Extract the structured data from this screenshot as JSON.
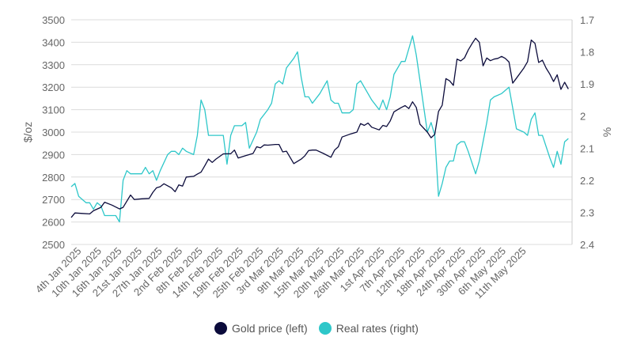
{
  "chart_data": {
    "type": "line",
    "title": "",
    "xlabel": "",
    "ylabel_left": "$/oz",
    "ylabel_right": "%",
    "ylim_left": [
      2500,
      3500
    ],
    "yticks_left": [
      "2500",
      "2600",
      "2700",
      "2800",
      "2900",
      "3000",
      "3100",
      "3200",
      "3300",
      "3400",
      "3500"
    ],
    "ylim_right": [
      2.4,
      1.7
    ],
    "right_axis_inverted": true,
    "yticks_right": [
      "1.7",
      "1.8",
      "1.9",
      "2",
      "2.1",
      "2.2",
      "2.3",
      "2.4"
    ],
    "x_tick_labels": [
      "4th Jan 2025",
      "10th Jan 2025",
      "16th Jan 2025",
      "21st Jan 2025",
      "27th Jan 2025",
      "2nd Feb 2025",
      "8th Feb 2025",
      "14th Feb 2025",
      "19th Feb 2025",
      "25th Feb 2025",
      "3rd Mar 2025",
      "9th Mar 2025",
      "15th Mar 2025",
      "20th Mar 2025",
      "26th Mar 2025",
      "1st Apr 2025",
      "7th Apr 2025",
      "12th Apr 2025",
      "18th Apr 2025",
      "24th Apr 2025",
      "30th Apr 2025",
      "6th May 2025",
      "11th May 2025"
    ],
    "grid": true,
    "legend_position": "bottom-center",
    "series": [
      {
        "name": "Gold price (left)",
        "axis": "left",
        "color": "#0b0b3b",
        "points": [
          [
            "2025-01-02",
            2620
          ],
          [
            "2025-01-03",
            2640
          ],
          [
            "2025-01-05",
            2638
          ],
          [
            "2025-01-07",
            2636
          ],
          [
            "2025-01-08",
            2650
          ],
          [
            "2025-01-10",
            2665
          ],
          [
            "2025-01-11",
            2688
          ],
          [
            "2025-01-13",
            2675
          ],
          [
            "2025-01-15",
            2658
          ],
          [
            "2025-01-16",
            2665
          ],
          [
            "2025-01-18",
            2720
          ],
          [
            "2025-01-19",
            2700
          ],
          [
            "2025-01-21",
            2703
          ],
          [
            "2025-01-23",
            2705
          ],
          [
            "2025-01-24",
            2732
          ],
          [
            "2025-01-25",
            2752
          ],
          [
            "2025-01-26",
            2757
          ],
          [
            "2025-01-27",
            2770
          ],
          [
            "2025-01-29",
            2752
          ],
          [
            "2025-01-30",
            2735
          ],
          [
            "2025-01-31",
            2765
          ],
          [
            "2025-02-01",
            2760
          ],
          [
            "2025-02-02",
            2800
          ],
          [
            "2025-02-04",
            2803
          ],
          [
            "2025-02-05",
            2813
          ],
          [
            "2025-02-06",
            2822
          ],
          [
            "2025-02-07",
            2850
          ],
          [
            "2025-02-08",
            2880
          ],
          [
            "2025-02-09",
            2865
          ],
          [
            "2025-02-10",
            2880
          ],
          [
            "2025-02-12",
            2903
          ],
          [
            "2025-02-14",
            2904
          ],
          [
            "2025-02-15",
            2920
          ],
          [
            "2025-02-16",
            2885
          ],
          [
            "2025-02-18",
            2895
          ],
          [
            "2025-02-20",
            2905
          ],
          [
            "2025-02-21",
            2935
          ],
          [
            "2025-02-22",
            2930
          ],
          [
            "2025-02-23",
            2943
          ],
          [
            "2025-02-24",
            2942
          ],
          [
            "2025-02-26",
            2945
          ],
          [
            "2025-02-27",
            2945
          ],
          [
            "2025-02-28",
            2912
          ],
          [
            "2025-03-01",
            2915
          ],
          [
            "2025-03-03",
            2860
          ],
          [
            "2025-03-05",
            2880
          ],
          [
            "2025-03-06",
            2895
          ],
          [
            "2025-03-07",
            2918
          ],
          [
            "2025-03-08",
            2920
          ],
          [
            "2025-03-09",
            2920
          ],
          [
            "2025-03-11",
            2905
          ],
          [
            "2025-03-13",
            2888
          ],
          [
            "2025-03-14",
            2920
          ],
          [
            "2025-03-15",
            2935
          ],
          [
            "2025-03-16",
            2978
          ],
          [
            "2025-03-18",
            2990
          ],
          [
            "2025-03-19",
            2995
          ],
          [
            "2025-03-20",
            3000
          ],
          [
            "2025-03-21",
            3038
          ],
          [
            "2025-03-22",
            3030
          ],
          [
            "2025-03-23",
            3040
          ],
          [
            "2025-03-24",
            3022
          ],
          [
            "2025-03-26",
            3010
          ],
          [
            "2025-03-27",
            3030
          ],
          [
            "2025-03-28",
            3025
          ],
          [
            "2025-03-29",
            3050
          ],
          [
            "2025-03-30",
            3090
          ],
          [
            "2025-03-31",
            3100
          ],
          [
            "2025-04-01",
            3110
          ],
          [
            "2025-04-02",
            3118
          ],
          [
            "2025-04-03",
            3105
          ],
          [
            "2025-04-04",
            3135
          ],
          [
            "2025-04-05",
            3110
          ],
          [
            "2025-04-06",
            3035
          ],
          [
            "2025-04-08",
            3000
          ],
          [
            "2025-04-09",
            2975
          ],
          [
            "2025-04-10",
            2990
          ],
          [
            "2025-04-11",
            3092
          ],
          [
            "2025-04-12",
            3120
          ],
          [
            "2025-04-13",
            3238
          ],
          [
            "2025-04-14",
            3228
          ],
          [
            "2025-04-15",
            3208
          ],
          [
            "2025-04-16",
            3325
          ],
          [
            "2025-04-17",
            3317
          ],
          [
            "2025-04-18",
            3330
          ],
          [
            "2025-04-19",
            3365
          ],
          [
            "2025-04-20",
            3393
          ],
          [
            "2025-04-21",
            3418
          ],
          [
            "2025-04-22",
            3400
          ],
          [
            "2025-04-23",
            3295
          ],
          [
            "2025-04-24",
            3330
          ],
          [
            "2025-04-25",
            3318
          ],
          [
            "2025-04-26",
            3325
          ],
          [
            "2025-04-27",
            3328
          ],
          [
            "2025-04-28",
            3337
          ],
          [
            "2025-04-29",
            3328
          ],
          [
            "2025-04-30",
            3312
          ],
          [
            "2025-05-01",
            3218
          ],
          [
            "2025-05-02",
            3240
          ],
          [
            "2025-05-04",
            3285
          ],
          [
            "2025-05-05",
            3313
          ],
          [
            "2025-05-06",
            3410
          ],
          [
            "2025-05-07",
            3395
          ],
          [
            "2025-05-08",
            3310
          ],
          [
            "2025-05-09",
            3320
          ],
          [
            "2025-05-10",
            3285
          ],
          [
            "2025-05-11",
            3258
          ],
          [
            "2025-05-12",
            3225
          ],
          [
            "2025-05-13",
            3255
          ],
          [
            "2025-05-14",
            3190
          ],
          [
            "2025-05-15",
            3222
          ],
          [
            "2025-05-16",
            3192
          ]
        ]
      },
      {
        "name": "Real rates (right)",
        "axis": "right",
        "color": "#2ec7c9",
        "points": [
          [
            "2025-01-02",
            2.22
          ],
          [
            "2025-01-03",
            2.21
          ],
          [
            "2025-01-04",
            2.25
          ],
          [
            "2025-01-06",
            2.27
          ],
          [
            "2025-01-07",
            2.27
          ],
          [
            "2025-01-08",
            2.29
          ],
          [
            "2025-01-09",
            2.27
          ],
          [
            "2025-01-10",
            2.28
          ],
          [
            "2025-01-11",
            2.31
          ],
          [
            "2025-01-13",
            2.31
          ],
          [
            "2025-01-14",
            2.31
          ],
          [
            "2025-01-15",
            2.33
          ],
          [
            "2025-01-16",
            2.2
          ],
          [
            "2025-01-17",
            2.17
          ],
          [
            "2025-01-18",
            2.18
          ],
          [
            "2025-01-20",
            2.18
          ],
          [
            "2025-01-21",
            2.18
          ],
          [
            "2025-01-22",
            2.16
          ],
          [
            "2025-01-23",
            2.18
          ],
          [
            "2025-01-24",
            2.17
          ],
          [
            "2025-01-25",
            2.2
          ],
          [
            "2025-01-26",
            2.17
          ],
          [
            "2025-01-28",
            2.12
          ],
          [
            "2025-01-29",
            2.11
          ],
          [
            "2025-01-30",
            2.11
          ],
          [
            "2025-01-31",
            2.12
          ],
          [
            "2025-02-01",
            2.1
          ],
          [
            "2025-02-02",
            2.11
          ],
          [
            "2025-02-04",
            2.12
          ],
          [
            "2025-02-05",
            2.06
          ],
          [
            "2025-02-06",
            1.95
          ],
          [
            "2025-02-07",
            1.98
          ],
          [
            "2025-02-08",
            2.06
          ],
          [
            "2025-02-09",
            2.06
          ],
          [
            "2025-02-10",
            2.06
          ],
          [
            "2025-02-12",
            2.06
          ],
          [
            "2025-02-13",
            2.15
          ],
          [
            "2025-02-14",
            2.06
          ],
          [
            "2025-02-15",
            2.03
          ],
          [
            "2025-02-16",
            2.03
          ],
          [
            "2025-02-17",
            2.03
          ],
          [
            "2025-02-18",
            2.02
          ],
          [
            "2025-02-19",
            2.1
          ],
          [
            "2025-02-21",
            2.05
          ],
          [
            "2025-02-22",
            2.01
          ],
          [
            "2025-02-24",
            1.98
          ],
          [
            "2025-02-25",
            1.96
          ],
          [
            "2025-02-26",
            1.9
          ],
          [
            "2025-02-27",
            1.89
          ],
          [
            "2025-02-28",
            1.9
          ],
          [
            "2025-03-01",
            1.85
          ],
          [
            "2025-03-03",
            1.82
          ],
          [
            "2025-03-04",
            1.8
          ],
          [
            "2025-03-05",
            1.88
          ],
          [
            "2025-03-06",
            1.94
          ],
          [
            "2025-03-07",
            1.94
          ],
          [
            "2025-03-08",
            1.96
          ],
          [
            "2025-03-10",
            1.93
          ],
          [
            "2025-03-11",
            1.91
          ],
          [
            "2025-03-12",
            1.89
          ],
          [
            "2025-03-13",
            1.95
          ],
          [
            "2025-03-14",
            1.96
          ],
          [
            "2025-03-15",
            1.96
          ],
          [
            "2025-03-16",
            1.99
          ],
          [
            "2025-03-18",
            1.99
          ],
          [
            "2025-03-19",
            1.98
          ],
          [
            "2025-03-20",
            1.9
          ],
          [
            "2025-03-21",
            1.89
          ],
          [
            "2025-03-22",
            1.91
          ],
          [
            "2025-03-24",
            1.95
          ],
          [
            "2025-03-26",
            1.98
          ],
          [
            "2025-03-27",
            1.95
          ],
          [
            "2025-03-28",
            1.98
          ],
          [
            "2025-03-29",
            1.94
          ],
          [
            "2025-03-30",
            1.87
          ],
          [
            "2025-03-31",
            1.85
          ],
          [
            "2025-04-01",
            1.83
          ],
          [
            "2025-04-02",
            1.83
          ],
          [
            "2025-04-03",
            1.79
          ],
          [
            "2025-04-04",
            1.75
          ],
          [
            "2025-04-05",
            1.81
          ],
          [
            "2025-04-06",
            1.89
          ],
          [
            "2025-04-07",
            1.97
          ],
          [
            "2025-04-08",
            2.05
          ],
          [
            "2025-04-09",
            2.02
          ],
          [
            "2025-04-10",
            2.06
          ],
          [
            "2025-04-11",
            2.25
          ],
          [
            "2025-04-12",
            2.21
          ],
          [
            "2025-04-13",
            2.16
          ],
          [
            "2025-04-14",
            2.14
          ],
          [
            "2025-04-15",
            2.14
          ],
          [
            "2025-04-16",
            2.09
          ],
          [
            "2025-04-17",
            2.08
          ],
          [
            "2025-04-18",
            2.08
          ],
          [
            "2025-04-19",
            2.11
          ],
          [
            "2025-04-21",
            2.18
          ],
          [
            "2025-04-22",
            2.14
          ],
          [
            "2025-04-23",
            2.08
          ],
          [
            "2025-04-24",
            2.02
          ],
          [
            "2025-04-25",
            1.95
          ],
          [
            "2025-04-26",
            1.94
          ],
          [
            "2025-04-28",
            1.93
          ],
          [
            "2025-04-29",
            1.92
          ],
          [
            "2025-04-30",
            1.91
          ],
          [
            "2025-05-02",
            2.04
          ],
          [
            "2025-05-04",
            2.05
          ],
          [
            "2025-05-05",
            2.06
          ],
          [
            "2025-05-06",
            2.01
          ],
          [
            "2025-05-07",
            1.99
          ],
          [
            "2025-05-08",
            2.06
          ],
          [
            "2025-05-09",
            2.06
          ],
          [
            "2025-05-11",
            2.13
          ],
          [
            "2025-05-12",
            2.16
          ],
          [
            "2025-05-13",
            2.11
          ],
          [
            "2025-05-14",
            2.15
          ],
          [
            "2025-05-15",
            2.08
          ],
          [
            "2025-05-16",
            2.07
          ]
        ]
      }
    ]
  }
}
